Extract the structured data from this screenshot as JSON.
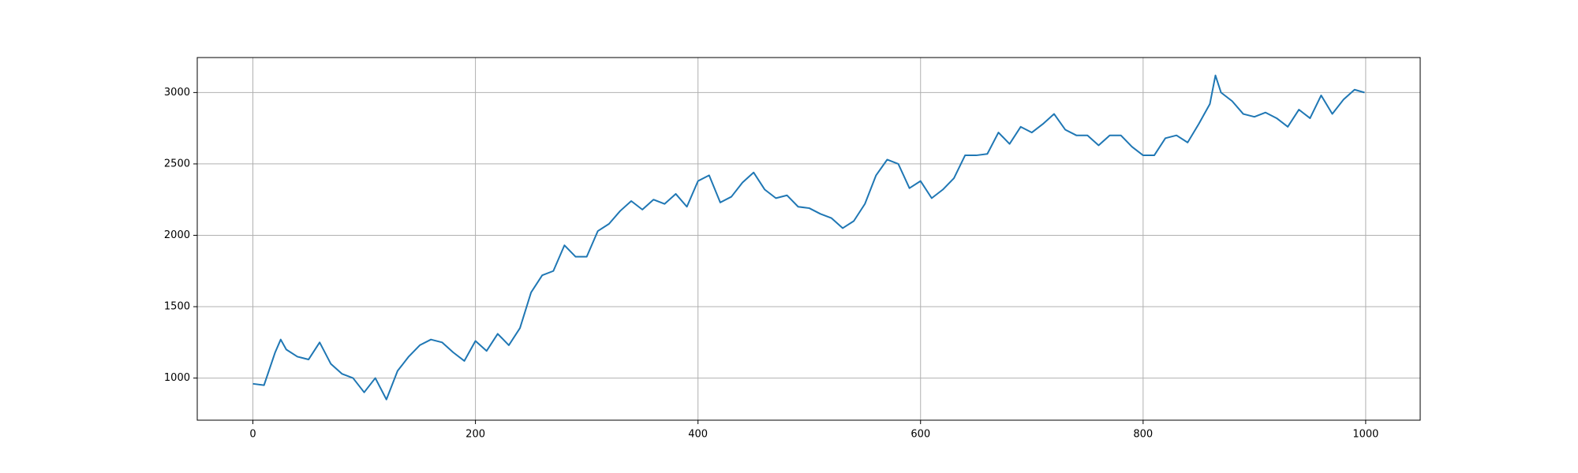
{
  "chart_data": {
    "type": "line",
    "x": [
      0,
      10,
      20,
      25,
      30,
      40,
      50,
      60,
      70,
      80,
      90,
      100,
      110,
      120,
      130,
      140,
      150,
      160,
      170,
      180,
      190,
      200,
      210,
      220,
      230,
      240,
      250,
      260,
      270,
      280,
      290,
      300,
      310,
      320,
      330,
      340,
      350,
      360,
      370,
      380,
      390,
      400,
      410,
      420,
      430,
      440,
      450,
      460,
      470,
      480,
      490,
      500,
      510,
      520,
      530,
      540,
      550,
      560,
      570,
      580,
      590,
      600,
      610,
      620,
      630,
      640,
      650,
      660,
      670,
      680,
      690,
      700,
      710,
      720,
      730,
      740,
      750,
      760,
      770,
      780,
      790,
      800,
      810,
      820,
      830,
      840,
      850,
      860,
      865,
      870,
      880,
      890,
      900,
      910,
      920,
      930,
      940,
      950,
      960,
      970,
      980,
      990,
      999
    ],
    "values": [
      960,
      950,
      1180,
      1270,
      1200,
      1150,
      1130,
      1250,
      1100,
      1030,
      1000,
      900,
      1000,
      850,
      1050,
      1150,
      1230,
      1270,
      1250,
      1180,
      1120,
      1260,
      1190,
      1310,
      1230,
      1350,
      1600,
      1720,
      1750,
      1930,
      1850,
      1850,
      2030,
      2080,
      2170,
      2240,
      2180,
      2250,
      2220,
      2290,
      2200,
      2380,
      2420,
      2230,
      2270,
      2370,
      2440,
      2320,
      2260,
      2280,
      2200,
      2190,
      2150,
      2120,
      2050,
      2100,
      2220,
      2420,
      2530,
      2500,
      2330,
      2380,
      2260,
      2320,
      2400,
      2560,
      2560,
      2570,
      2720,
      2640,
      2760,
      2720,
      2780,
      2850,
      2740,
      2700,
      2700,
      2630,
      2700,
      2700,
      2620,
      2560,
      2560,
      2680,
      2700,
      2650,
      2780,
      2920,
      3120,
      3000,
      2940,
      2850,
      2830,
      2860,
      2820,
      2760,
      2880,
      2820,
      2980,
      2850,
      2950,
      3020,
      3000
    ],
    "color": "#1f77b4",
    "xlim": [
      -50,
      1049
    ],
    "ylim": [
      705,
      3245
    ],
    "xticks": [
      0,
      200,
      400,
      600,
      800,
      1000
    ],
    "yticks": [
      1000,
      1500,
      2000,
      2500,
      3000
    ],
    "grid": true
  }
}
